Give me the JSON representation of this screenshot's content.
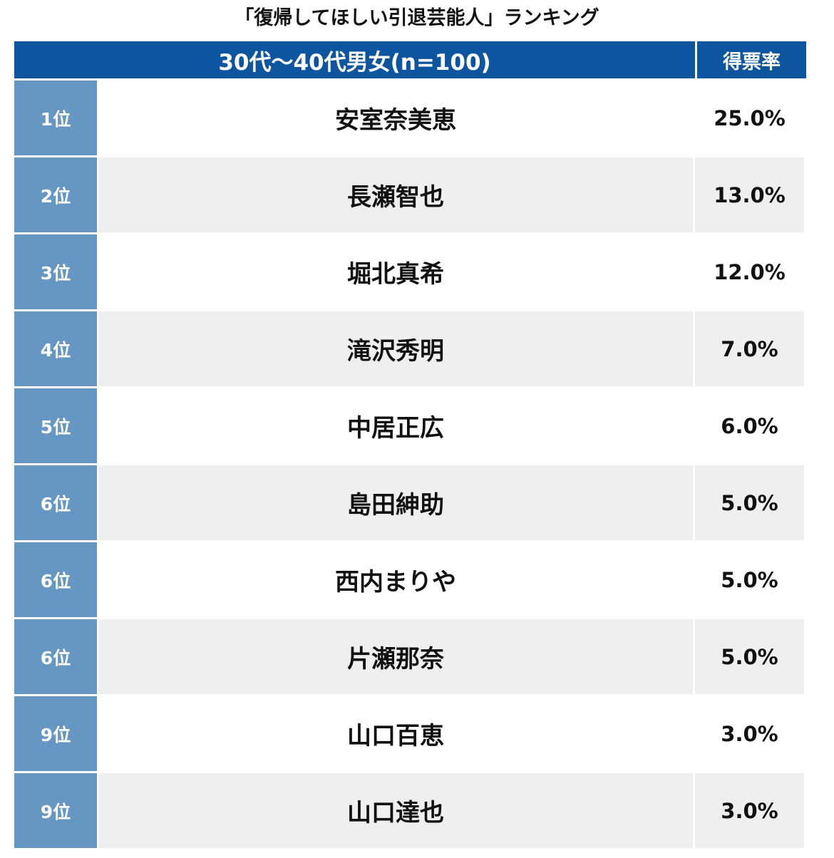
{
  "title": "「復帰してほしい引退芸能人」ランキング",
  "header": {
    "group": "30代〜40代男女(n=100)",
    "rate": "得票率"
  },
  "rows": [
    {
      "rank": "1位",
      "name": "安室奈美恵",
      "rate": "25.0%"
    },
    {
      "rank": "2位",
      "name": "長瀬智也",
      "rate": "13.0%"
    },
    {
      "rank": "3位",
      "name": "堀北真希",
      "rate": "12.0%"
    },
    {
      "rank": "4位",
      "name": "滝沢秀明",
      "rate": "7.0%"
    },
    {
      "rank": "5位",
      "name": "中居正広",
      "rate": "6.0%"
    },
    {
      "rank": "6位",
      "name": "島田紳助",
      "rate": "5.0%"
    },
    {
      "rank": "6位",
      "name": "西内まりや",
      "rate": "5.0%"
    },
    {
      "rank": "6位",
      "name": "片瀬那奈",
      "rate": "5.0%"
    },
    {
      "rank": "9位",
      "name": "山口百恵",
      "rate": "3.0%"
    },
    {
      "rank": "9位",
      "name": "山口達也",
      "rate": "3.0%"
    }
  ],
  "colors": {
    "header": "#0e55a0",
    "rank_cell": "#6697c2",
    "alt_row": "#efefef"
  },
  "chart_data": {
    "type": "table",
    "title": "「復帰してほしい引退芸能人」ランキング",
    "columns": [
      "30代〜40代男女(n=100)",
      "得票率"
    ],
    "categories": [
      "安室奈美恵",
      "長瀬智也",
      "堀北真希",
      "滝沢秀明",
      "中居正広",
      "島田紳助",
      "西内まりや",
      "片瀬那奈",
      "山口百恵",
      "山口達也"
    ],
    "ranks": [
      "1位",
      "2位",
      "3位",
      "4位",
      "5位",
      "6位",
      "6位",
      "6位",
      "9位",
      "9位"
    ],
    "values": [
      25.0,
      13.0,
      12.0,
      7.0,
      6.0,
      5.0,
      5.0,
      5.0,
      3.0,
      3.0
    ]
  }
}
